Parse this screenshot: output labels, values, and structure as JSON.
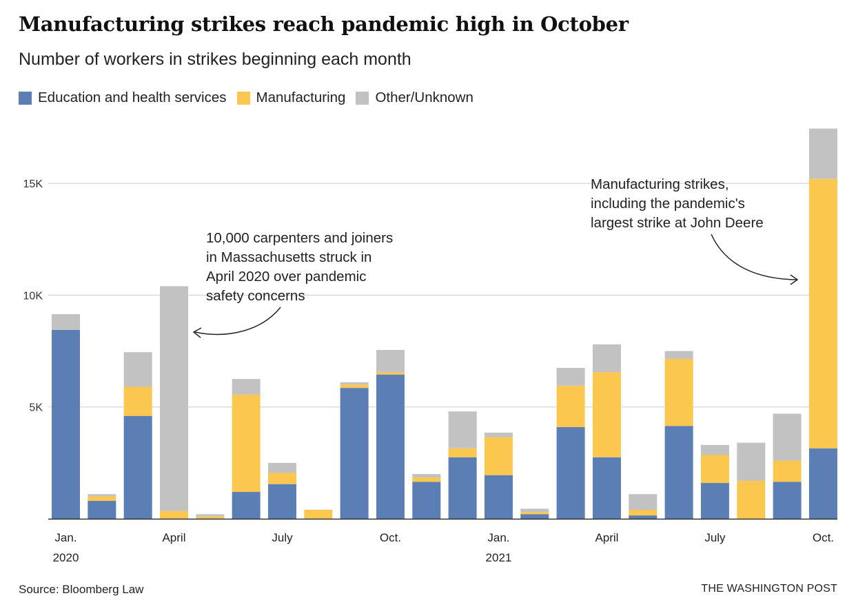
{
  "title": "Manufacturing strikes reach pandemic high in October",
  "subtitle": "Number of workers in strikes beginning each month",
  "source": "Source: Bloomberg Law",
  "credit": "THE WASHINGTON POST",
  "colors": {
    "education": "#5b7fb5",
    "manufacturing": "#fcc74f",
    "other": "#c2c2c2",
    "grid": "#cccccc",
    "axis": "#333333"
  },
  "chart_data": {
    "type": "bar",
    "stacked": true,
    "ylim": [
      0,
      17500
    ],
    "yticks": [
      {
        "value": 5000,
        "label": "5K"
      },
      {
        "value": 10000,
        "label": "10K"
      },
      {
        "value": 15000,
        "label": "15K"
      }
    ],
    "categories": [
      "Jan. 2020",
      "Feb. 2020",
      "Mar. 2020",
      "Apr. 2020",
      "May 2020",
      "Jun. 2020",
      "Jul. 2020",
      "Aug. 2020",
      "Sep. 2020",
      "Oct. 2020",
      "Nov. 2020",
      "Dec. 2020",
      "Jan. 2021",
      "Feb. 2021",
      "Mar. 2021",
      "Apr. 2021",
      "May 2021",
      "Jun. 2021",
      "Jul. 2021",
      "Aug. 2021",
      "Sep. 2021",
      "Oct. 2021"
    ],
    "xtick_labels": [
      {
        "index": 0,
        "line1": "Jan.",
        "line2": "2020"
      },
      {
        "index": 3,
        "line1": "April",
        "line2": ""
      },
      {
        "index": 6,
        "line1": "July",
        "line2": ""
      },
      {
        "index": 9,
        "line1": "Oct.",
        "line2": ""
      },
      {
        "index": 12,
        "line1": "Jan.",
        "line2": "2021"
      },
      {
        "index": 15,
        "line1": "April",
        "line2": ""
      },
      {
        "index": 18,
        "line1": "July",
        "line2": ""
      },
      {
        "index": 21,
        "line1": "Oct.",
        "line2": ""
      }
    ],
    "series": [
      {
        "name": "Education and health services",
        "color_key": "education",
        "values": [
          8450,
          800,
          4600,
          0,
          0,
          1200,
          1550,
          0,
          5850,
          6450,
          1650,
          2750,
          1950,
          200,
          4100,
          2750,
          150,
          4150,
          1600,
          0,
          1650,
          3150
        ]
      },
      {
        "name": "Manufacturing",
        "color_key": "manufacturing",
        "values": [
          0,
          200,
          1300,
          350,
          100,
          4350,
          500,
          400,
          150,
          100,
          200,
          400,
          1700,
          100,
          1850,
          3800,
          250,
          3000,
          1250,
          1700,
          950,
          12050
        ]
      },
      {
        "name": "Other/Unknown",
        "color_key": "other",
        "values": [
          700,
          100,
          1550,
          10050,
          100,
          700,
          450,
          0,
          100,
          1000,
          150,
          1650,
          200,
          150,
          800,
          1250,
          700,
          350,
          450,
          1700,
          2100,
          2250
        ]
      }
    ],
    "annotations": [
      {
        "lines": [
          "10,000 carpenters and joiners",
          "in Massachusetts struck in",
          "April 2020 over pandemic",
          "safety concerns"
        ]
      },
      {
        "lines": [
          "Manufacturing strikes,",
          "including the pandemic's",
          "largest strike at John Deere"
        ]
      }
    ]
  }
}
